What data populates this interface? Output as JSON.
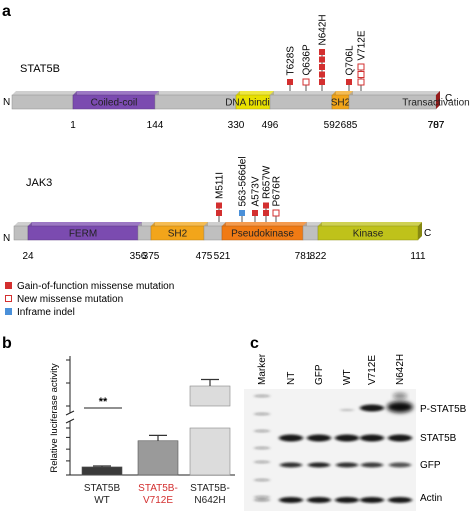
{
  "panels": {
    "a": {
      "letter": "a",
      "stat5b": {
        "name": "STAT5B",
        "n_label": "N",
        "c_label": "C",
        "positions": [
          "1",
          "144",
          "330",
          "496",
          "592",
          "685",
          "707",
          "787"
        ],
        "domains": [
          {
            "label": "",
            "color": "#bfbfbf"
          },
          {
            "label": "Coiled-coil",
            "color": "#7b4bb0"
          },
          {
            "label": "",
            "color": "#bfbfbf"
          },
          {
            "label": "DNA binding",
            "color": "#e8e000"
          },
          {
            "label": "",
            "color": "#bfbfbf"
          },
          {
            "label": "SH2",
            "color": "#f2a51a"
          },
          {
            "label": "",
            "color": "#bfbfbf"
          },
          {
            "label": "Transactivation",
            "color": "#d62626"
          }
        ],
        "mutations": [
          {
            "label": "T628S",
            "type": "gof",
            "count": 1
          },
          {
            "label": "Q636P",
            "type": "new",
            "count": 1
          },
          {
            "label": "N642H",
            "type": "gof",
            "count": 5
          },
          {
            "label": "Q706L",
            "type": "gof",
            "count": 1
          },
          {
            "label": "V712E",
            "type": "new",
            "count": 3
          }
        ]
      },
      "jak3": {
        "name": "JAK3",
        "n_label": "N",
        "c_label": "C",
        "positions": [
          "24",
          "356",
          "375",
          "475",
          "521",
          "781",
          "822",
          "111"
        ],
        "domains": [
          {
            "label": "",
            "color": "#bfbfbf"
          },
          {
            "label": "FERM",
            "color": "#7b4bb0"
          },
          {
            "label": "",
            "color": "#bfbfbf"
          },
          {
            "label": "SH2",
            "color": "#f2a51a"
          },
          {
            "label": "",
            "color": "#bfbfbf"
          },
          {
            "label": "Pseudokinase",
            "color": "#f07a14"
          },
          {
            "label": "",
            "color": "#bfbfbf"
          },
          {
            "label": "Kinase",
            "color": "#bfc21a"
          }
        ],
        "mutations": [
          {
            "label": "M511I",
            "type": "gof",
            "count": 2
          },
          {
            "label": "563-566del",
            "type": "indel",
            "count": 1
          },
          {
            "label": "A573V",
            "type": "gof",
            "count": 1
          },
          {
            "label": "R657W",
            "type": "gof",
            "count": 2
          },
          {
            "label": "P676R",
            "type": "new",
            "count": 1
          }
        ]
      },
      "legend": [
        {
          "type": "gof",
          "label": "Gain-of-function missense mutation"
        },
        {
          "type": "new",
          "label": "New missense mutation"
        },
        {
          "type": "indel",
          "label": "Inframe indel"
        }
      ],
      "colors": {
        "gof": "#d32f2f",
        "new": "#d32f2f",
        "indel": "#4a90d9"
      }
    },
    "b": {
      "letter": "b",
      "significance": "**",
      "chart_data": {
        "type": "bar",
        "ylabel": "Relative luciferase activity",
        "categories": [
          "STAT5B WT",
          "STAT5B-V712E",
          "STAT5B-N642H"
        ],
        "category_lines": [
          [
            "STAT5B",
            "WT"
          ],
          [
            "STAT5B-",
            "V712E"
          ],
          [
            "STAT5B-",
            "N642H"
          ]
        ],
        "category_colors": [
          "#222222",
          "#d32f2f",
          "#222222"
        ],
        "values": [
          1.2,
          5.1,
          32
        ],
        "errors": [
          0.15,
          0.8,
          1.3
        ],
        "bar_colors": [
          "#3a3a3a",
          "#9a9a9a",
          "#dcdcdc"
        ],
        "ylim": [
          0,
          38
        ],
        "axis_break": [
          7,
          28
        ]
      }
    },
    "c": {
      "letter": "c",
      "lanes": [
        "Marker",
        "NT",
        "GFP",
        "WT",
        "V712E",
        "N642H"
      ],
      "rows": [
        "P-STAT5B",
        "STAT5B",
        "GFP",
        "Actin"
      ]
    }
  }
}
